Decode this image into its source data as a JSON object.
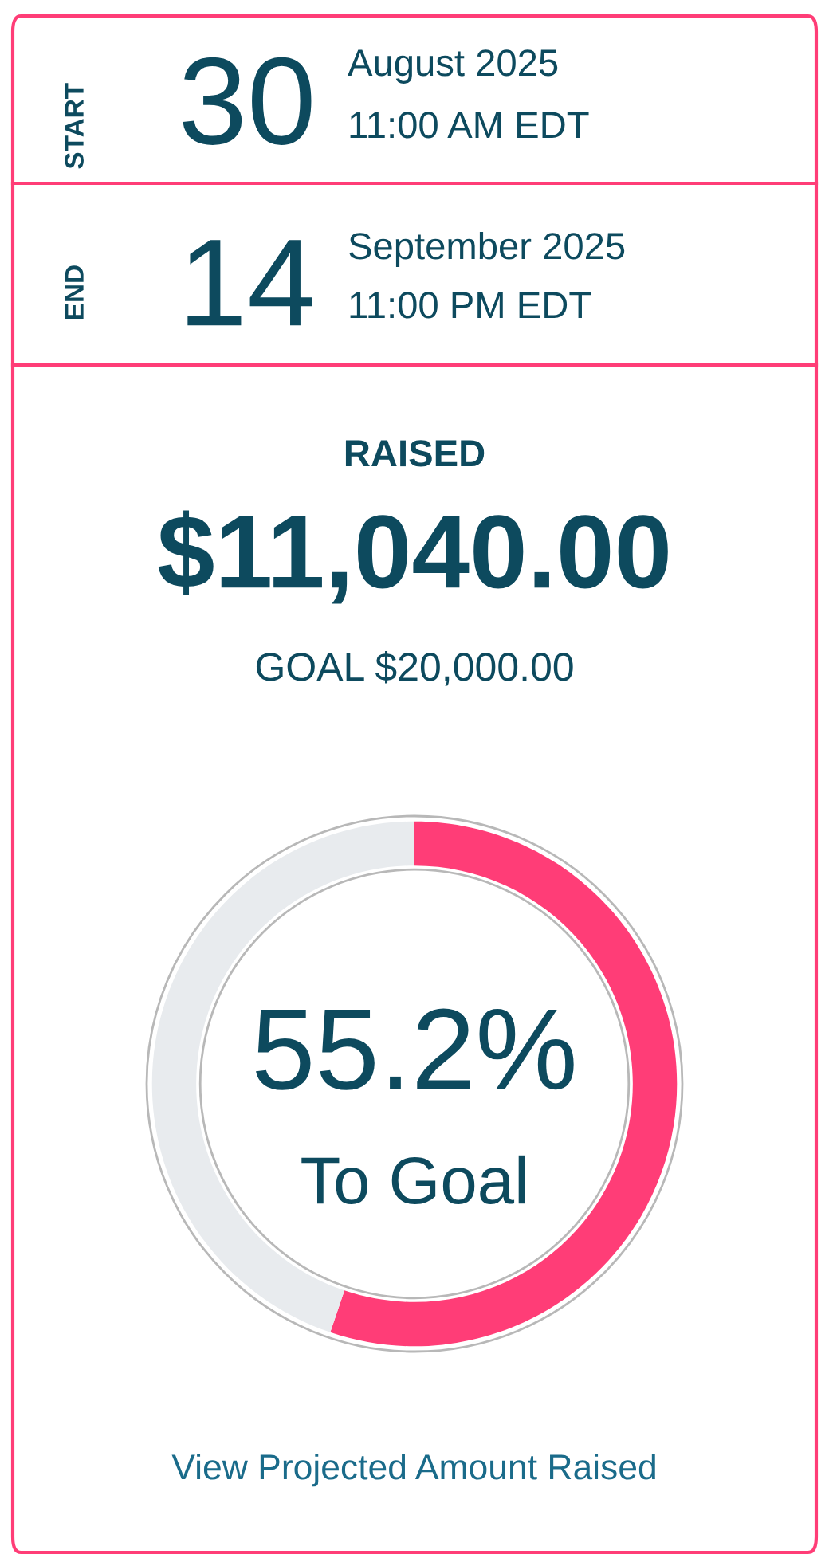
{
  "chart_data": {
    "type": "donut",
    "categories": [
      null,
      null
    ],
    "values": [
      55.2,
      44.8
    ],
    "colors": [
      "#ff3d77",
      "#e8ebee"
    ],
    "annotations": [
      "START",
      "30",
      "August 2025",
      "11:00 AM EDT",
      "END",
      "14",
      "September 2025",
      "11:00 PM EDT",
      "RAISED",
      "$11,040.00",
      "GOAL $20,000.00",
      "55.2%",
      "To Goal",
      "View Projected Amount Raised"
    ]
  }
}
